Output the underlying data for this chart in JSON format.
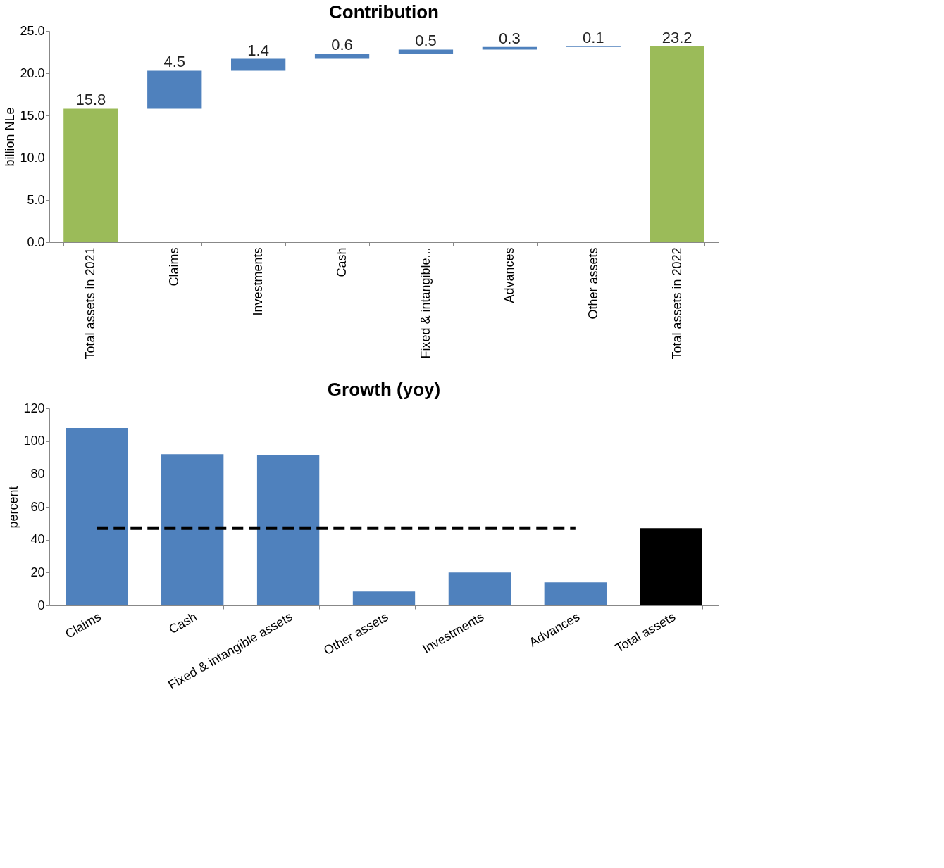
{
  "chart_data": [
    {
      "type": "bar",
      "title": "Contribution",
      "ylabel": "billion NLe",
      "categories": [
        "Total assets in 2021",
        "Claims",
        "Investments",
        "Cash",
        "Fixed & intangible...",
        "Advances",
        "Other assets",
        "Total assets in 2022"
      ],
      "values": [
        15.8,
        4.5,
        1.4,
        0.6,
        0.5,
        0.3,
        0.1,
        23.2
      ],
      "base": [
        0,
        15.8,
        20.3,
        21.7,
        22.3,
        22.8,
        23.1,
        0
      ],
      "colors": [
        "#9bbb59",
        "#4f81bd",
        "#4f81bd",
        "#4f81bd",
        "#4f81bd",
        "#4f81bd",
        "#4f81bd",
        "#9bbb59"
      ],
      "data_labels": true,
      "ylim": [
        0,
        25
      ],
      "yticks": [
        {
          "value": 0,
          "label": "0.0"
        },
        {
          "value": 5,
          "label": "5.0"
        },
        {
          "value": 10,
          "label": "10.0"
        },
        {
          "value": 15,
          "label": "15.0"
        },
        {
          "value": 20,
          "label": "20.0"
        },
        {
          "value": 25,
          "label": "25.0"
        }
      ],
      "grid": false
    },
    {
      "type": "bar",
      "title": "Growth (yoy)",
      "ylabel": "percent",
      "categories": [
        "Claims",
        "Cash",
        "Fixed & intangible assets",
        "Other assets",
        "Investments",
        "Advances",
        "Total assets"
      ],
      "series": [
        {
          "type": "bar",
          "colors": [
            "#4f81bd",
            "#4f81bd",
            "#4f81bd",
            "#4f81bd",
            "#4f81bd",
            "#4f81bd",
            "#000000"
          ],
          "values": [
            108,
            92,
            91.5,
            8.5,
            20,
            14,
            47
          ]
        },
        {
          "type": "line",
          "color": "#000000",
          "line_style": "dashed",
          "values": [
            47,
            47,
            47,
            47,
            47,
            47,
            null
          ]
        }
      ],
      "ylim": [
        0,
        120
      ],
      "yticks": [
        0,
        20,
        40,
        60,
        80,
        100,
        120
      ],
      "grid": false
    }
  ]
}
